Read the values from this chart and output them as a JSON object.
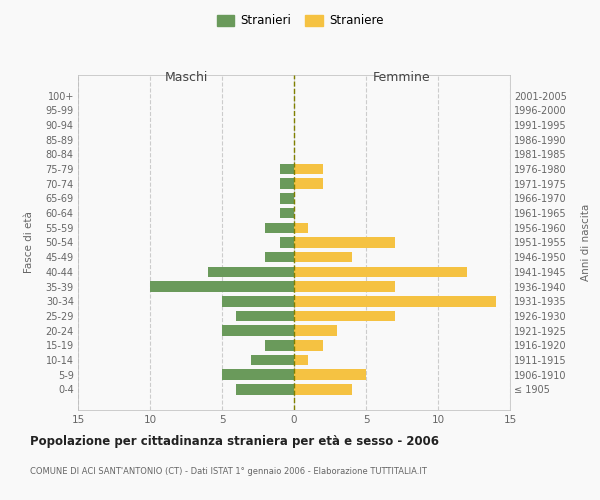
{
  "age_groups": [
    "100+",
    "95-99",
    "90-94",
    "85-89",
    "80-84",
    "75-79",
    "70-74",
    "65-69",
    "60-64",
    "55-59",
    "50-54",
    "45-49",
    "40-44",
    "35-39",
    "30-34",
    "25-29",
    "20-24",
    "15-19",
    "10-14",
    "5-9",
    "0-4"
  ],
  "birth_years": [
    "≤ 1905",
    "1906-1910",
    "1911-1915",
    "1916-1920",
    "1921-1925",
    "1926-1930",
    "1931-1935",
    "1936-1940",
    "1941-1945",
    "1946-1950",
    "1951-1955",
    "1956-1960",
    "1961-1965",
    "1966-1970",
    "1971-1975",
    "1976-1980",
    "1981-1985",
    "1986-1990",
    "1991-1995",
    "1996-2000",
    "2001-2005"
  ],
  "males": [
    0,
    0,
    0,
    0,
    0,
    1,
    1,
    1,
    1,
    2,
    1,
    2,
    6,
    10,
    5,
    4,
    5,
    2,
    3,
    5,
    4
  ],
  "females": [
    0,
    0,
    0,
    0,
    0,
    2,
    2,
    0,
    0,
    1,
    7,
    4,
    12,
    7,
    14,
    7,
    3,
    2,
    1,
    5,
    4
  ],
  "male_color": "#6a9a5b",
  "female_color": "#f5c242",
  "title": "Popolazione per cittadinanza straniera per età e sesso - 2006",
  "subtitle": "COMUNE DI ACI SANT'ANTONIO (CT) - Dati ISTAT 1° gennaio 2006 - Elaborazione TUTTITALIA.IT",
  "ylabel_left": "Fasce di età",
  "ylabel_right": "Anni di nascita",
  "xlabel_left": "Maschi",
  "xlabel_right": "Femmine",
  "legend_male": "Stranieri",
  "legend_female": "Straniere",
  "xlim": 15,
  "background_color": "#f9f9f9",
  "grid_color": "#cccccc",
  "label_color": "#666666"
}
